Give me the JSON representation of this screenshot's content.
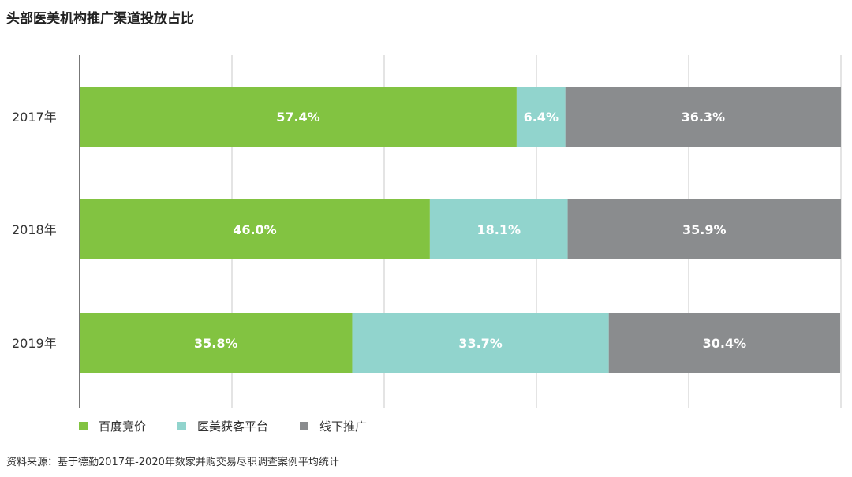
{
  "title": "头部医美机构推广渠道投放占比",
  "source": "资料来源：基于德勤2017年-2020年数家并购交易尽职调查案例平均统计",
  "chart_data": {
    "type": "bar",
    "orientation": "horizontal",
    "stacked": true,
    "title": "头部医美机构推广渠道投放占比",
    "categories": [
      "2017年",
      "2018年",
      "2019年"
    ],
    "series": [
      {
        "name": "百度竞价",
        "color": "#82c341",
        "values": [
          57.4,
          46.0,
          35.8
        ],
        "labels": [
          "57.4%",
          "46.0%",
          "35.8%"
        ]
      },
      {
        "name": "医美获客平台",
        "color": "#91d4cd",
        "values": [
          6.4,
          18.1,
          33.7
        ],
        "labels": [
          "6.4%",
          "18.1%",
          "33.7%"
        ]
      },
      {
        "name": "线下推广",
        "color": "#8a8c8e",
        "values": [
          36.3,
          35.9,
          30.4
        ],
        "labels": [
          "36.3%",
          "35.9%",
          "30.4%"
        ]
      }
    ],
    "xlim": [
      0,
      100
    ],
    "grid": true,
    "legend_position": "bottom-left"
  }
}
